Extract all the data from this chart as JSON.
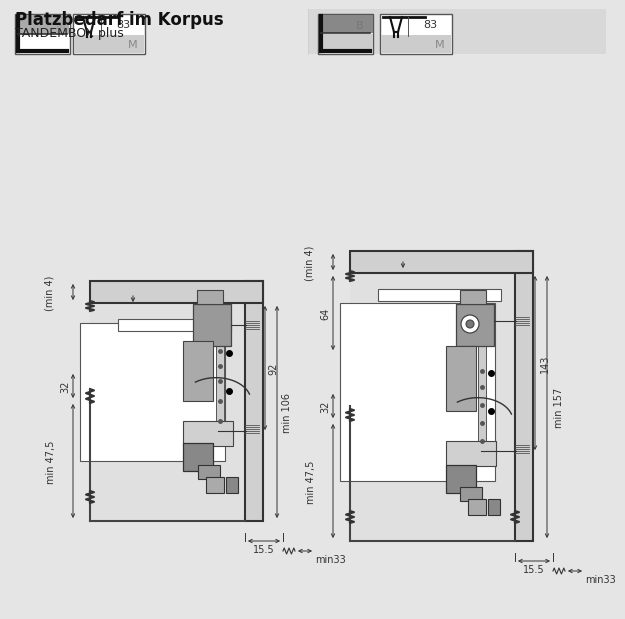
{
  "title1": "Platzbedarf im Korpus",
  "title2": "TANDEMBOX plus",
  "bg_color": "#e5e5e5",
  "white": "#ffffff",
  "dark": "#222222",
  "gray1": "#b0b0b0",
  "gray2": "#d0d0d0",
  "gray3": "#888888",
  "dim_color": "#333333",
  "left_dims_left": [
    "(min 4)",
    "min 47,5",
    "32"
  ],
  "left_dims_right": [
    "92",
    "min 106"
  ],
  "left_dims_bottom": [
    "15.5",
    "min33"
  ],
  "right_dims_left": [
    "(min 4)",
    "64",
    "min 47,5",
    "32"
  ],
  "right_dims_right": [
    "143",
    "min 157"
  ],
  "right_dims_bottom": [
    "15.5",
    "min33"
  ]
}
